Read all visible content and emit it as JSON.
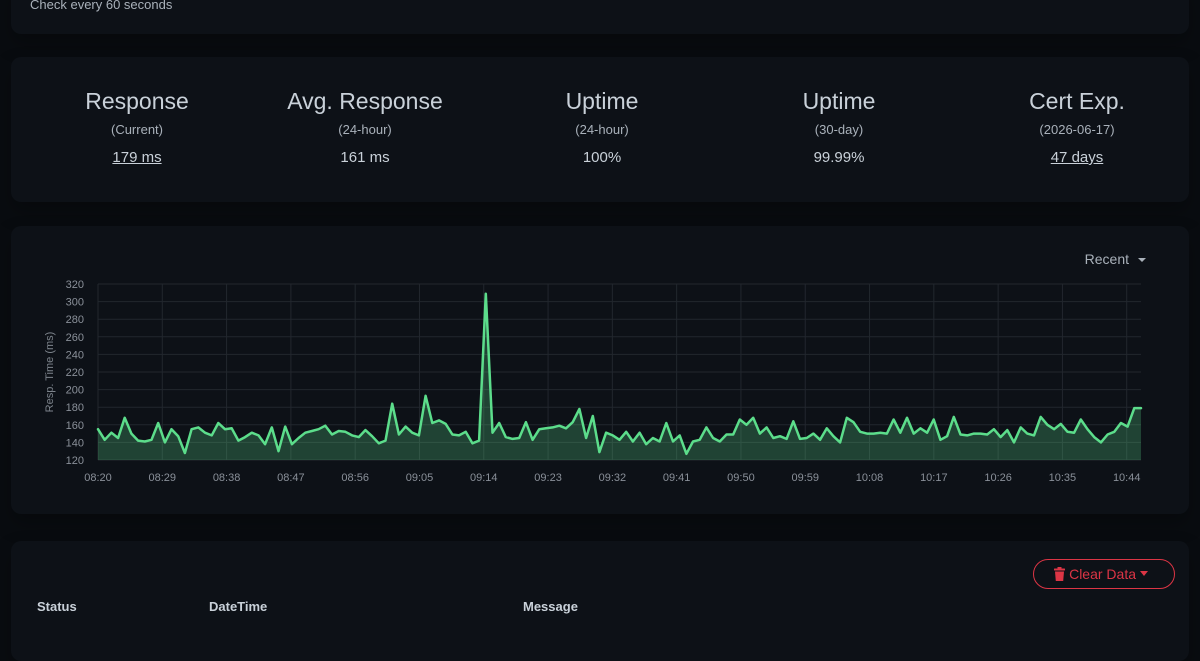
{
  "monitor": {
    "interval_text": "Check every 60 seconds"
  },
  "stats": [
    {
      "title": "Response",
      "subtitle": "(Current)",
      "value": "179 ms",
      "link": true
    },
    {
      "title": "Avg. Response",
      "subtitle": "(24-hour)",
      "value": "161 ms",
      "link": false
    },
    {
      "title": "Uptime",
      "subtitle": "(24-hour)",
      "value": "100%",
      "link": false
    },
    {
      "title": "Uptime",
      "subtitle": "(30-day)",
      "value": "99.99%",
      "link": false
    },
    {
      "title": "Cert Exp.",
      "subtitle": "(2026-06-17)",
      "value": "47 days",
      "link": true
    }
  ],
  "chart": {
    "period_label": "Recent",
    "colors": {
      "line": "#5cdd8b",
      "fill": "#5cdd8b",
      "grid": "#22272e"
    }
  },
  "chart_data": {
    "type": "area",
    "title": "",
    "xlabel": "",
    "ylabel": "Resp. Time (ms)",
    "ylim": [
      120,
      320
    ],
    "yticks": [
      120,
      140,
      160,
      180,
      200,
      220,
      240,
      260,
      280,
      300,
      320
    ],
    "x_tick_labels": [
      "08:20",
      "08:29",
      "08:38",
      "08:47",
      "08:56",
      "09:05",
      "09:14",
      "09:23",
      "09:32",
      "09:41",
      "09:50",
      "09:59",
      "10:08",
      "10:17",
      "10:26",
      "10:35",
      "10:44"
    ],
    "x_start": "08:20",
    "x_end": "10:46",
    "values": [
      155,
      143,
      151,
      145,
      168,
      150,
      142,
      141,
      143,
      162,
      140,
      155,
      147,
      128,
      155,
      157,
      151,
      148,
      162,
      155,
      156,
      142,
      146,
      151,
      148,
      138,
      157,
      130,
      158,
      138,
      145,
      151,
      153,
      155,
      159,
      149,
      153,
      152,
      148,
      146,
      154,
      147,
      139,
      142,
      184,
      149,
      158,
      151,
      148,
      193,
      162,
      165,
      161,
      149,
      148,
      152,
      139,
      142,
      309,
      151,
      162,
      146,
      144,
      145,
      163,
      143,
      155,
      156,
      157,
      159,
      156,
      163,
      178,
      145,
      170,
      129,
      151,
      148,
      143,
      152,
      141,
      151,
      138,
      145,
      141,
      162,
      141,
      148,
      127,
      141,
      143,
      157,
      145,
      141,
      149,
      149,
      166,
      160,
      168,
      150,
      157,
      145,
      147,
      144,
      164,
      144,
      145,
      150,
      143,
      156,
      147,
      140,
      168,
      163,
      152,
      150,
      150,
      151,
      150,
      166,
      151,
      168,
      150,
      156,
      151,
      166,
      143,
      147,
      169,
      149,
      148,
      150,
      150,
      149,
      155,
      146,
      154,
      140,
      157,
      150,
      148,
      169,
      160,
      155,
      161,
      152,
      151,
      166,
      155,
      146,
      140,
      149,
      152,
      162,
      158,
      179,
      179
    ]
  },
  "events": {
    "clear_label": "Clear Data",
    "columns": [
      "Status",
      "DateTime",
      "Message"
    ]
  }
}
